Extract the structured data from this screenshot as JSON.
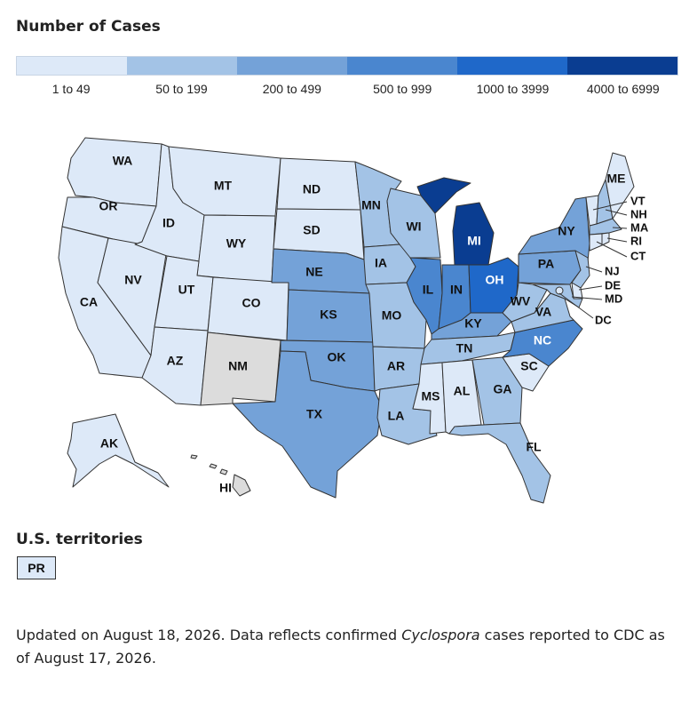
{
  "legend": {
    "title": "Number of Cases",
    "bins": [
      {
        "label": "1 to 49",
        "color": "#dde9f8"
      },
      {
        "label": "50 to 199",
        "color": "#a3c3e6"
      },
      {
        "label": "200 to 499",
        "color": "#74a2d8"
      },
      {
        "label": "500 to 999",
        "color": "#4a86cf"
      },
      {
        "label": "1000 to 3999",
        "color": "#1f68c9"
      },
      {
        "label": "4000 to 6999",
        "color": "#0a3d91"
      }
    ],
    "no_data_color": "#dcdcdc"
  },
  "states": {
    "WA": {
      "label": "WA",
      "bin": 0
    },
    "OR": {
      "label": "OR",
      "bin": 0
    },
    "CA": {
      "label": "CA",
      "bin": 0
    },
    "NV": {
      "label": "NV",
      "bin": 0
    },
    "ID": {
      "label": "ID",
      "bin": 0
    },
    "MT": {
      "label": "MT",
      "bin": 0
    },
    "WY": {
      "label": "WY",
      "bin": 0
    },
    "UT": {
      "label": "UT",
      "bin": 0
    },
    "CO": {
      "label": "CO",
      "bin": 0
    },
    "AZ": {
      "label": "AZ",
      "bin": 0
    },
    "NM": {
      "label": "NM",
      "bin": null
    },
    "ND": {
      "label": "ND",
      "bin": 0
    },
    "SD": {
      "label": "SD",
      "bin": 0
    },
    "NE": {
      "label": "NE",
      "bin": 2
    },
    "KS": {
      "label": "KS",
      "bin": 2
    },
    "OK": {
      "label": "OK",
      "bin": 2
    },
    "TX": {
      "label": "TX",
      "bin": 2
    },
    "MN": {
      "label": "MN",
      "bin": 1
    },
    "IA": {
      "label": "IA",
      "bin": 1
    },
    "MO": {
      "label": "MO",
      "bin": 1
    },
    "AR": {
      "label": "AR",
      "bin": 1
    },
    "LA": {
      "label": "LA",
      "bin": 1
    },
    "WI": {
      "label": "WI",
      "bin": 1
    },
    "IL": {
      "label": "IL",
      "bin": 3
    },
    "MI": {
      "label": "MI",
      "bin": 5
    },
    "IN": {
      "label": "IN",
      "bin": 3
    },
    "OH": {
      "label": "OH",
      "bin": 4
    },
    "KY": {
      "label": "KY",
      "bin": 2
    },
    "TN": {
      "label": "TN",
      "bin": 1
    },
    "MS": {
      "label": "MS",
      "bin": 0
    },
    "AL": {
      "label": "AL",
      "bin": 0
    },
    "GA": {
      "label": "GA",
      "bin": 1
    },
    "FL": {
      "label": "FL",
      "bin": 1
    },
    "SC": {
      "label": "SC",
      "bin": 0
    },
    "NC": {
      "label": "NC",
      "bin": 3
    },
    "VA": {
      "label": "VA",
      "bin": 1
    },
    "WV": {
      "label": "WV",
      "bin": 1
    },
    "PA": {
      "label": "PA",
      "bin": 2
    },
    "NY": {
      "label": "NY",
      "bin": 2
    },
    "VT": {
      "label": "VT",
      "bin": 0
    },
    "NH": {
      "label": "NH",
      "bin": 1
    },
    "ME": {
      "label": "ME",
      "bin": 0
    },
    "MA": {
      "label": "MA",
      "bin": 1
    },
    "RI": {
      "label": "RI",
      "bin": 0
    },
    "CT": {
      "label": "CT",
      "bin": 0
    },
    "NJ": {
      "label": "NJ",
      "bin": 1
    },
    "DE": {
      "label": "DE",
      "bin": 0
    },
    "MD": {
      "label": "MD",
      "bin": 1
    },
    "DC": {
      "label": "DC",
      "bin": 0
    },
    "AK": {
      "label": "AK",
      "bin": 0
    },
    "HI": {
      "label": "HI",
      "bin": null
    }
  },
  "territories": {
    "title": "U.S. territories",
    "items": [
      {
        "label": "PR",
        "bin": 0
      }
    ]
  },
  "footnote": {
    "prefix": "Updated on August 18, 2026. Data reflects confirmed ",
    "organism": "Cyclospora",
    "suffix": " cases reported to CDC as of August 17, 2026."
  }
}
